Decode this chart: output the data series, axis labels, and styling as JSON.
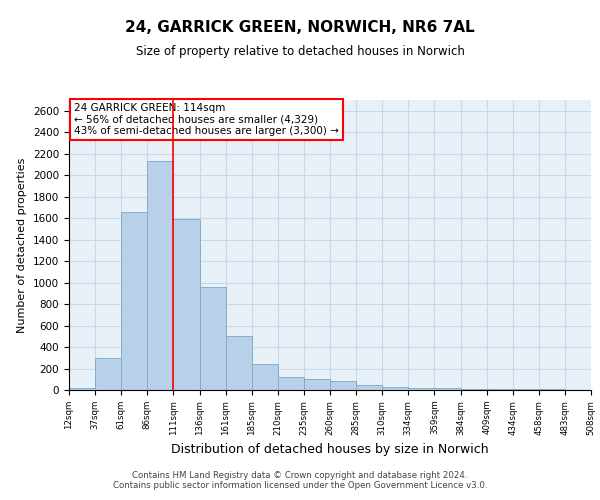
{
  "title1": "24, GARRICK GREEN, NORWICH, NR6 7AL",
  "title2": "Size of property relative to detached houses in Norwich",
  "xlabel": "Distribution of detached houses by size in Norwich",
  "ylabel": "Number of detached properties",
  "bar_values": [
    20,
    300,
    1660,
    2130,
    1590,
    960,
    500,
    245,
    120,
    100,
    85,
    45,
    25,
    20,
    15,
    10,
    10,
    5,
    10
  ],
  "bin_labels": [
    "12sqm",
    "37sqm",
    "61sqm",
    "86sqm",
    "111sqm",
    "136sqm",
    "161sqm",
    "185sqm",
    "210sqm",
    "235sqm",
    "260sqm",
    "285sqm",
    "310sqm",
    "334sqm",
    "359sqm",
    "384sqm",
    "409sqm",
    "434sqm",
    "458sqm",
    "483sqm",
    "508sqm"
  ],
  "bar_color": "#b8d0e8",
  "bar_edge_color": "#7aaac8",
  "bar_edge_width": 0.6,
  "grid_color": "#c8d8e8",
  "bg_color": "#e8f0f8",
  "red_line_x": 4,
  "annotation_text": "24 GARRICK GREEN: 114sqm\n← 56% of detached houses are smaller (4,329)\n43% of semi-detached houses are larger (3,300) →",
  "annotation_box_color": "#ffffff",
  "ylim": [
    0,
    2700
  ],
  "yticks": [
    0,
    200,
    400,
    600,
    800,
    1000,
    1200,
    1400,
    1600,
    1800,
    2000,
    2200,
    2400,
    2600
  ],
  "footer1": "Contains HM Land Registry data © Crown copyright and database right 2024.",
  "footer2": "Contains public sector information licensed under the Open Government Licence v3.0."
}
